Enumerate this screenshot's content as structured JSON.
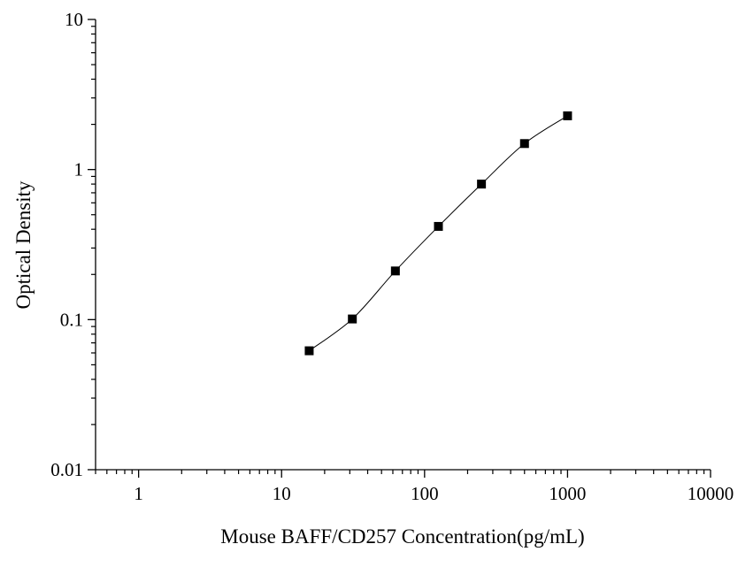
{
  "chart_data": {
    "type": "scatter",
    "title": "",
    "xlabel": "Mouse BAFF/CD257 Concentration(pg/mL)",
    "ylabel": "Optical Density",
    "xscale": "log",
    "yscale": "log",
    "xlim": [
      0.5,
      10000
    ],
    "ylim": [
      0.01,
      10
    ],
    "grid": false,
    "legend": "none",
    "x_ticks": [
      {
        "value": 1,
        "label": "1"
      },
      {
        "value": 10,
        "label": "10"
      },
      {
        "value": 100,
        "label": "100"
      },
      {
        "value": 1000,
        "label": "1000"
      },
      {
        "value": 10000,
        "label": "10000"
      }
    ],
    "y_ticks": [
      {
        "value": 0.01,
        "label": "0.01"
      },
      {
        "value": 0.1,
        "label": "0.1"
      },
      {
        "value": 1,
        "label": "1"
      },
      {
        "value": 10,
        "label": "10"
      }
    ],
    "series": [
      {
        "x": [
          15.6,
          31.25,
          62.5,
          125,
          250,
          500,
          1000
        ],
        "y": [
          0.062,
          0.101,
          0.211,
          0.418,
          0.8,
          1.49,
          2.28
        ],
        "color": "#000000",
        "marker": "square",
        "line": "smooth"
      }
    ]
  }
}
